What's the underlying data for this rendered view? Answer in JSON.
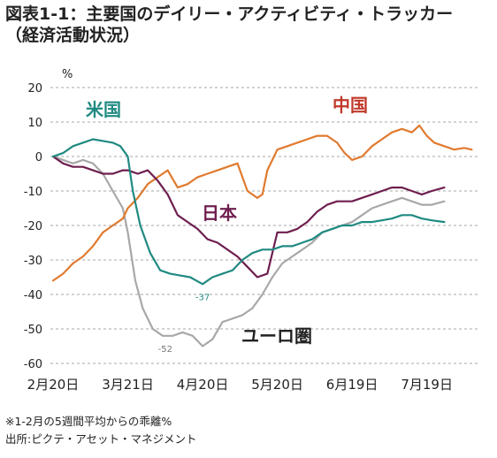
{
  "title_line1": "図表1-1：主要国のデイリー・アクティビティ・トラッカー",
  "title_line2": "（経済活動状況）",
  "footnote": "※1-2月の5週間平均からの乖離%",
  "source": "出所:ピクテ・アセット・マネジメント",
  "chart_data": {
    "type": "line",
    "title": "",
    "ylabel": "%",
    "xlabel": "",
    "ylim": [
      -60,
      20
    ],
    "yticks": [
      20,
      10,
      0,
      -10,
      -20,
      -30,
      -40,
      -50,
      -60
    ],
    "x_tick_labels": [
      "2月20日",
      "3月21日",
      "4月20日",
      "5月20日",
      "6月19日",
      "7月19日"
    ],
    "x_tick_dates": [
      "2020-02-20",
      "2020-03-21",
      "2020-04-20",
      "2020-05-20",
      "2020-06-19",
      "2020-07-19"
    ],
    "grid": "horizontal-dashed",
    "legend": "inline-labels",
    "series": [
      {
        "name": "米国",
        "color": "#1f8a82",
        "points": [
          [
            "2020-02-20",
            0
          ],
          [
            "2020-02-24",
            1
          ],
          [
            "2020-02-28",
            3
          ],
          [
            "2020-03-03",
            4
          ],
          [
            "2020-03-07",
            5
          ],
          [
            "2020-03-11",
            4.5
          ],
          [
            "2020-03-15",
            4
          ],
          [
            "2020-03-18",
            3
          ],
          [
            "2020-03-21",
            0
          ],
          [
            "2020-03-23",
            -10
          ],
          [
            "2020-03-26",
            -20
          ],
          [
            "2020-03-30",
            -28
          ],
          [
            "2020-04-03",
            -33
          ],
          [
            "2020-04-07",
            -34
          ],
          [
            "2020-04-11",
            -34.5
          ],
          [
            "2020-04-15",
            -35
          ],
          [
            "2020-04-20",
            -37
          ],
          [
            "2020-04-24",
            -35
          ],
          [
            "2020-04-28",
            -34
          ],
          [
            "2020-05-02",
            -33
          ],
          [
            "2020-05-06",
            -30
          ],
          [
            "2020-05-10",
            -28
          ],
          [
            "2020-05-14",
            -27
          ],
          [
            "2020-05-18",
            -27
          ],
          [
            "2020-05-22",
            -26
          ],
          [
            "2020-05-26",
            -26
          ],
          [
            "2020-05-30",
            -25
          ],
          [
            "2020-06-03",
            -24
          ],
          [
            "2020-06-07",
            -22
          ],
          [
            "2020-06-11",
            -21
          ],
          [
            "2020-06-15",
            -20
          ],
          [
            "2020-06-19",
            -20
          ],
          [
            "2020-06-23",
            -19
          ],
          [
            "2020-06-27",
            -19
          ],
          [
            "2020-07-01",
            -18.5
          ],
          [
            "2020-07-05",
            -18
          ],
          [
            "2020-07-09",
            -17
          ],
          [
            "2020-07-13",
            -17
          ],
          [
            "2020-07-17",
            -18
          ],
          [
            "2020-07-21",
            -18.5
          ],
          [
            "2020-07-26",
            -19
          ]
        ]
      },
      {
        "name": "中国",
        "color": "#e07a2f",
        "points": [
          [
            "2020-02-20",
            -36
          ],
          [
            "2020-02-24",
            -34
          ],
          [
            "2020-02-28",
            -31
          ],
          [
            "2020-03-03",
            -29
          ],
          [
            "2020-03-07",
            -26
          ],
          [
            "2020-03-11",
            -22
          ],
          [
            "2020-03-15",
            -20
          ],
          [
            "2020-03-19",
            -18
          ],
          [
            "2020-03-21",
            -15
          ],
          [
            "2020-03-25",
            -12
          ],
          [
            "2020-03-29",
            -8
          ],
          [
            "2020-04-02",
            -6
          ],
          [
            "2020-04-06",
            -4
          ],
          [
            "2020-04-10",
            -9
          ],
          [
            "2020-04-14",
            -8
          ],
          [
            "2020-04-18",
            -6
          ],
          [
            "2020-04-22",
            -5
          ],
          [
            "2020-04-26",
            -4
          ],
          [
            "2020-04-30",
            -3
          ],
          [
            "2020-05-04",
            -2
          ],
          [
            "2020-05-08",
            -10
          ],
          [
            "2020-05-12",
            -12
          ],
          [
            "2020-05-14",
            -11
          ],
          [
            "2020-05-16",
            -4
          ],
          [
            "2020-05-20",
            2
          ],
          [
            "2020-05-24",
            3
          ],
          [
            "2020-05-28",
            4
          ],
          [
            "2020-06-01",
            5
          ],
          [
            "2020-06-05",
            6
          ],
          [
            "2020-06-09",
            6
          ],
          [
            "2020-06-13",
            4
          ],
          [
            "2020-06-16",
            1
          ],
          [
            "2020-06-19",
            -1
          ],
          [
            "2020-06-23",
            0
          ],
          [
            "2020-06-27",
            3
          ],
          [
            "2020-07-01",
            5
          ],
          [
            "2020-07-05",
            7
          ],
          [
            "2020-07-09",
            8
          ],
          [
            "2020-07-13",
            7
          ],
          [
            "2020-07-16",
            9
          ],
          [
            "2020-07-19",
            6
          ],
          [
            "2020-07-22",
            4
          ],
          [
            "2020-07-26",
            3
          ],
          [
            "2020-07-30",
            2
          ],
          [
            "2020-08-03",
            2.5
          ],
          [
            "2020-08-06",
            2
          ]
        ]
      },
      {
        "name": "日本",
        "color": "#6e1e4e",
        "points": [
          [
            "2020-02-20",
            0
          ],
          [
            "2020-02-24",
            -2
          ],
          [
            "2020-02-28",
            -3
          ],
          [
            "2020-03-03",
            -3
          ],
          [
            "2020-03-07",
            -4
          ],
          [
            "2020-03-11",
            -5
          ],
          [
            "2020-03-15",
            -5
          ],
          [
            "2020-03-19",
            -4
          ],
          [
            "2020-03-21",
            -4
          ],
          [
            "2020-03-25",
            -5
          ],
          [
            "2020-03-29",
            -4
          ],
          [
            "2020-04-02",
            -7
          ],
          [
            "2020-04-06",
            -11
          ],
          [
            "2020-04-10",
            -17
          ],
          [
            "2020-04-14",
            -19
          ],
          [
            "2020-04-18",
            -21
          ],
          [
            "2020-04-22",
            -24
          ],
          [
            "2020-04-26",
            -25
          ],
          [
            "2020-04-30",
            -27
          ],
          [
            "2020-05-04",
            -29
          ],
          [
            "2020-05-08",
            -32
          ],
          [
            "2020-05-12",
            -35
          ],
          [
            "2020-05-16",
            -34
          ],
          [
            "2020-05-20",
            -22
          ],
          [
            "2020-05-24",
            -22
          ],
          [
            "2020-05-28",
            -21
          ],
          [
            "2020-06-01",
            -19
          ],
          [
            "2020-06-05",
            -16
          ],
          [
            "2020-06-09",
            -14
          ],
          [
            "2020-06-13",
            -13
          ],
          [
            "2020-06-19",
            -13
          ],
          [
            "2020-06-23",
            -12
          ],
          [
            "2020-06-27",
            -11
          ],
          [
            "2020-07-01",
            -10
          ],
          [
            "2020-07-05",
            -9
          ],
          [
            "2020-07-09",
            -9
          ],
          [
            "2020-07-13",
            -10
          ],
          [
            "2020-07-17",
            -11
          ],
          [
            "2020-07-21",
            -10
          ],
          [
            "2020-07-26",
            -9
          ]
        ]
      },
      {
        "name": "ユーロ圏",
        "color": "#a8a8a8",
        "points": [
          [
            "2020-02-20",
            0
          ],
          [
            "2020-02-24",
            -1
          ],
          [
            "2020-02-28",
            -2
          ],
          [
            "2020-03-03",
            -1
          ],
          [
            "2020-03-07",
            -2
          ],
          [
            "2020-03-11",
            -5
          ],
          [
            "2020-03-15",
            -10
          ],
          [
            "2020-03-19",
            -15
          ],
          [
            "2020-03-21",
            -22
          ],
          [
            "2020-03-24",
            -36
          ],
          [
            "2020-03-27",
            -44
          ],
          [
            "2020-03-31",
            -50
          ],
          [
            "2020-04-04",
            -52
          ],
          [
            "2020-04-08",
            -52
          ],
          [
            "2020-04-12",
            -51
          ],
          [
            "2020-04-16",
            -52
          ],
          [
            "2020-04-20",
            -55
          ],
          [
            "2020-04-24",
            -53
          ],
          [
            "2020-04-28",
            -48
          ],
          [
            "2020-05-02",
            -47
          ],
          [
            "2020-05-06",
            -46
          ],
          [
            "2020-05-10",
            -44
          ],
          [
            "2020-05-14",
            -40
          ],
          [
            "2020-05-18",
            -35
          ],
          [
            "2020-05-22",
            -31
          ],
          [
            "2020-05-26",
            -29
          ],
          [
            "2020-05-30",
            -27
          ],
          [
            "2020-06-03",
            -25
          ],
          [
            "2020-06-07",
            -22
          ],
          [
            "2020-06-11",
            -21
          ],
          [
            "2020-06-15",
            -20
          ],
          [
            "2020-06-19",
            -19
          ],
          [
            "2020-06-23",
            -17
          ],
          [
            "2020-06-27",
            -15
          ],
          [
            "2020-07-01",
            -14
          ],
          [
            "2020-07-05",
            -13
          ],
          [
            "2020-07-09",
            -12
          ],
          [
            "2020-07-13",
            -13
          ],
          [
            "2020-07-17",
            -14
          ],
          [
            "2020-07-21",
            -14
          ],
          [
            "2020-07-26",
            -13
          ]
        ]
      }
    ],
    "annotations": [
      {
        "text": "-37",
        "x": "2020-04-20",
        "y": -37
      },
      {
        "text": "-52",
        "x": "2020-04-05",
        "y": -52
      }
    ]
  }
}
